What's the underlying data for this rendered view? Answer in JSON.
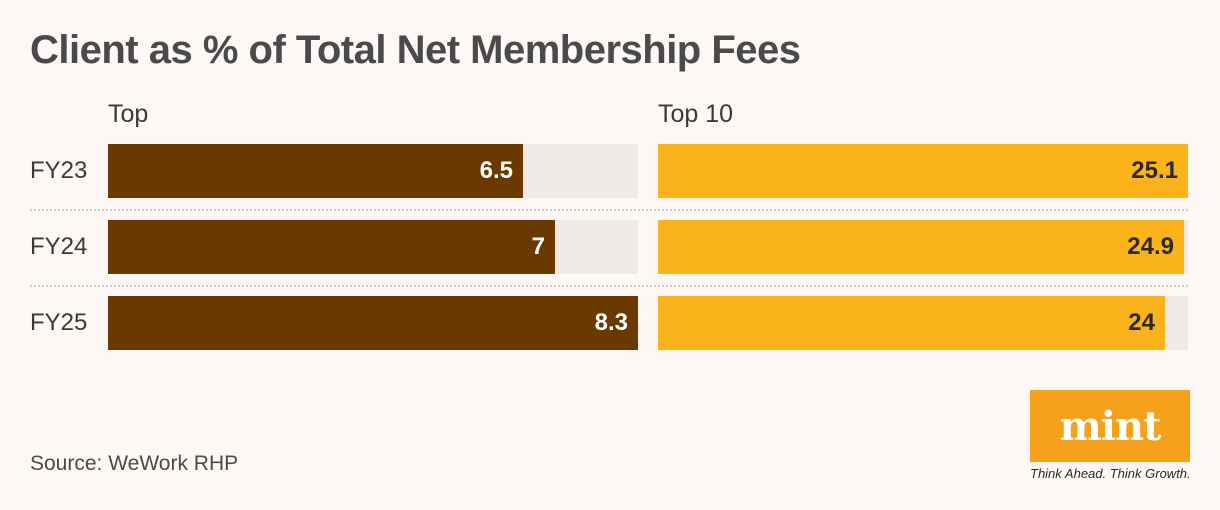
{
  "title": "Client as % of Total Net Membership Fees",
  "source": "Source: WeWork RHP",
  "logo": {
    "word": "mint",
    "tagline": "Think Ahead. Think Growth."
  },
  "colors": {
    "top": "#6b3800",
    "top10": "#fbb31c",
    "track": "#efe9e8",
    "logo": "#f5a11b",
    "background": "#fdf8f6"
  },
  "chart_data": [
    {
      "type": "bar",
      "title": "Top",
      "categories": [
        "FY23",
        "FY24",
        "FY25"
      ],
      "values": [
        6.5,
        7,
        8.3
      ],
      "xlim": [
        0,
        8.3
      ]
    },
    {
      "type": "bar",
      "title": "Top 10",
      "categories": [
        "FY23",
        "FY24",
        "FY25"
      ],
      "values": [
        25.1,
        24.9,
        24
      ],
      "xlim": [
        0,
        25.1
      ]
    }
  ]
}
